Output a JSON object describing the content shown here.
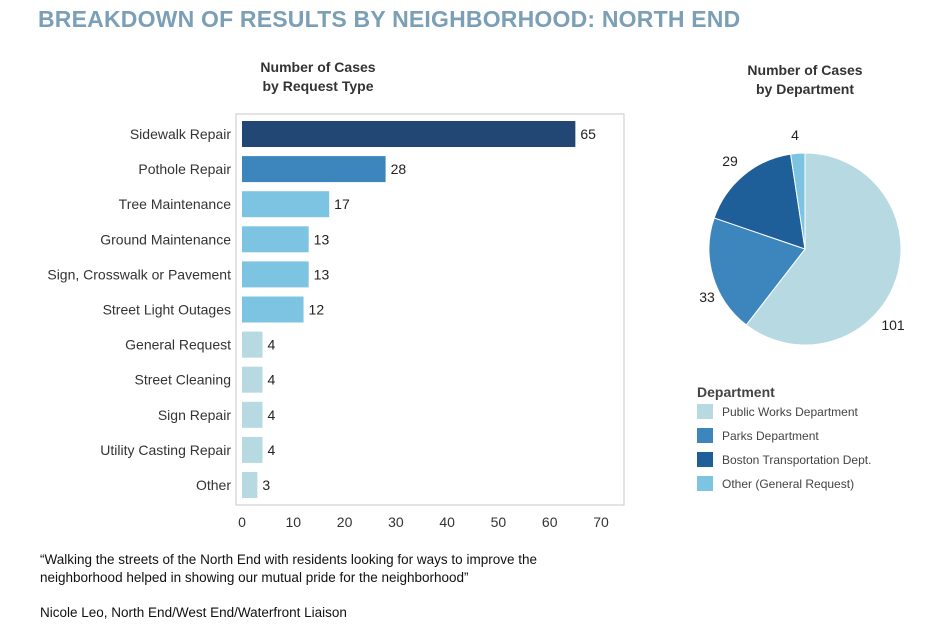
{
  "page_title": "BREAKDOWN OF RESULTS BY NEIGHBORHOOD: NORTH END",
  "quote": "“Walking the streets of the North End with residents looking for ways to improve the neighborhood helped in showing our mutual pride for the neighborhood”",
  "attribution": "Nicole Leo, North End/West End/Waterfront Liaison",
  "colors": {
    "title": "#7a9fb6",
    "darkest": "#234774",
    "mid_blue": "#3d86bd",
    "light_blue": "#7cc4e2",
    "pale_blue": "#b6d9e2",
    "pie_dark": "#1f5f99"
  },
  "chart_data": [
    {
      "type": "bar",
      "orientation": "horizontal",
      "title_lines": [
        "Number of Cases",
        "by Request Type"
      ],
      "categories": [
        "Sidewalk Repair",
        "Pothole Repair",
        "Tree Maintenance",
        "Ground Maintenance",
        "Sign, Crosswalk or Pavement",
        "Street Light Outages",
        "General Request",
        "Street Cleaning",
        "Sign Repair",
        "Utility Casting Repair",
        "Other"
      ],
      "values": [
        65,
        28,
        17,
        13,
        13,
        12,
        4,
        4,
        4,
        4,
        3
      ],
      "bar_colors": [
        "#234774",
        "#3d86bd",
        "#7cc4e2",
        "#7cc4e2",
        "#7cc4e2",
        "#7cc4e2",
        "#b6d9e2",
        "#b6d9e2",
        "#b6d9e2",
        "#b6d9e2",
        "#b6d9e2"
      ],
      "xlim": [
        0,
        70
      ],
      "xticks": [
        0,
        10,
        20,
        30,
        40,
        50,
        60,
        70
      ],
      "data_labels": true,
      "grid": false
    },
    {
      "type": "pie",
      "title_lines": [
        "Number of Cases",
        "by Department"
      ],
      "legend_title": "Department",
      "legend_position": "bottom",
      "slices": [
        {
          "label": "Public Works Department",
          "value": 101,
          "color": "#b6d9e2"
        },
        {
          "label": "Parks Department",
          "value": 33,
          "color": "#3d86bd"
        },
        {
          "label": "Boston Transportation Dept.",
          "value": 29,
          "color": "#1f5f99"
        },
        {
          "label": "Other (General Request)",
          "value": 4,
          "color": "#7cc4e2"
        }
      ]
    }
  ]
}
